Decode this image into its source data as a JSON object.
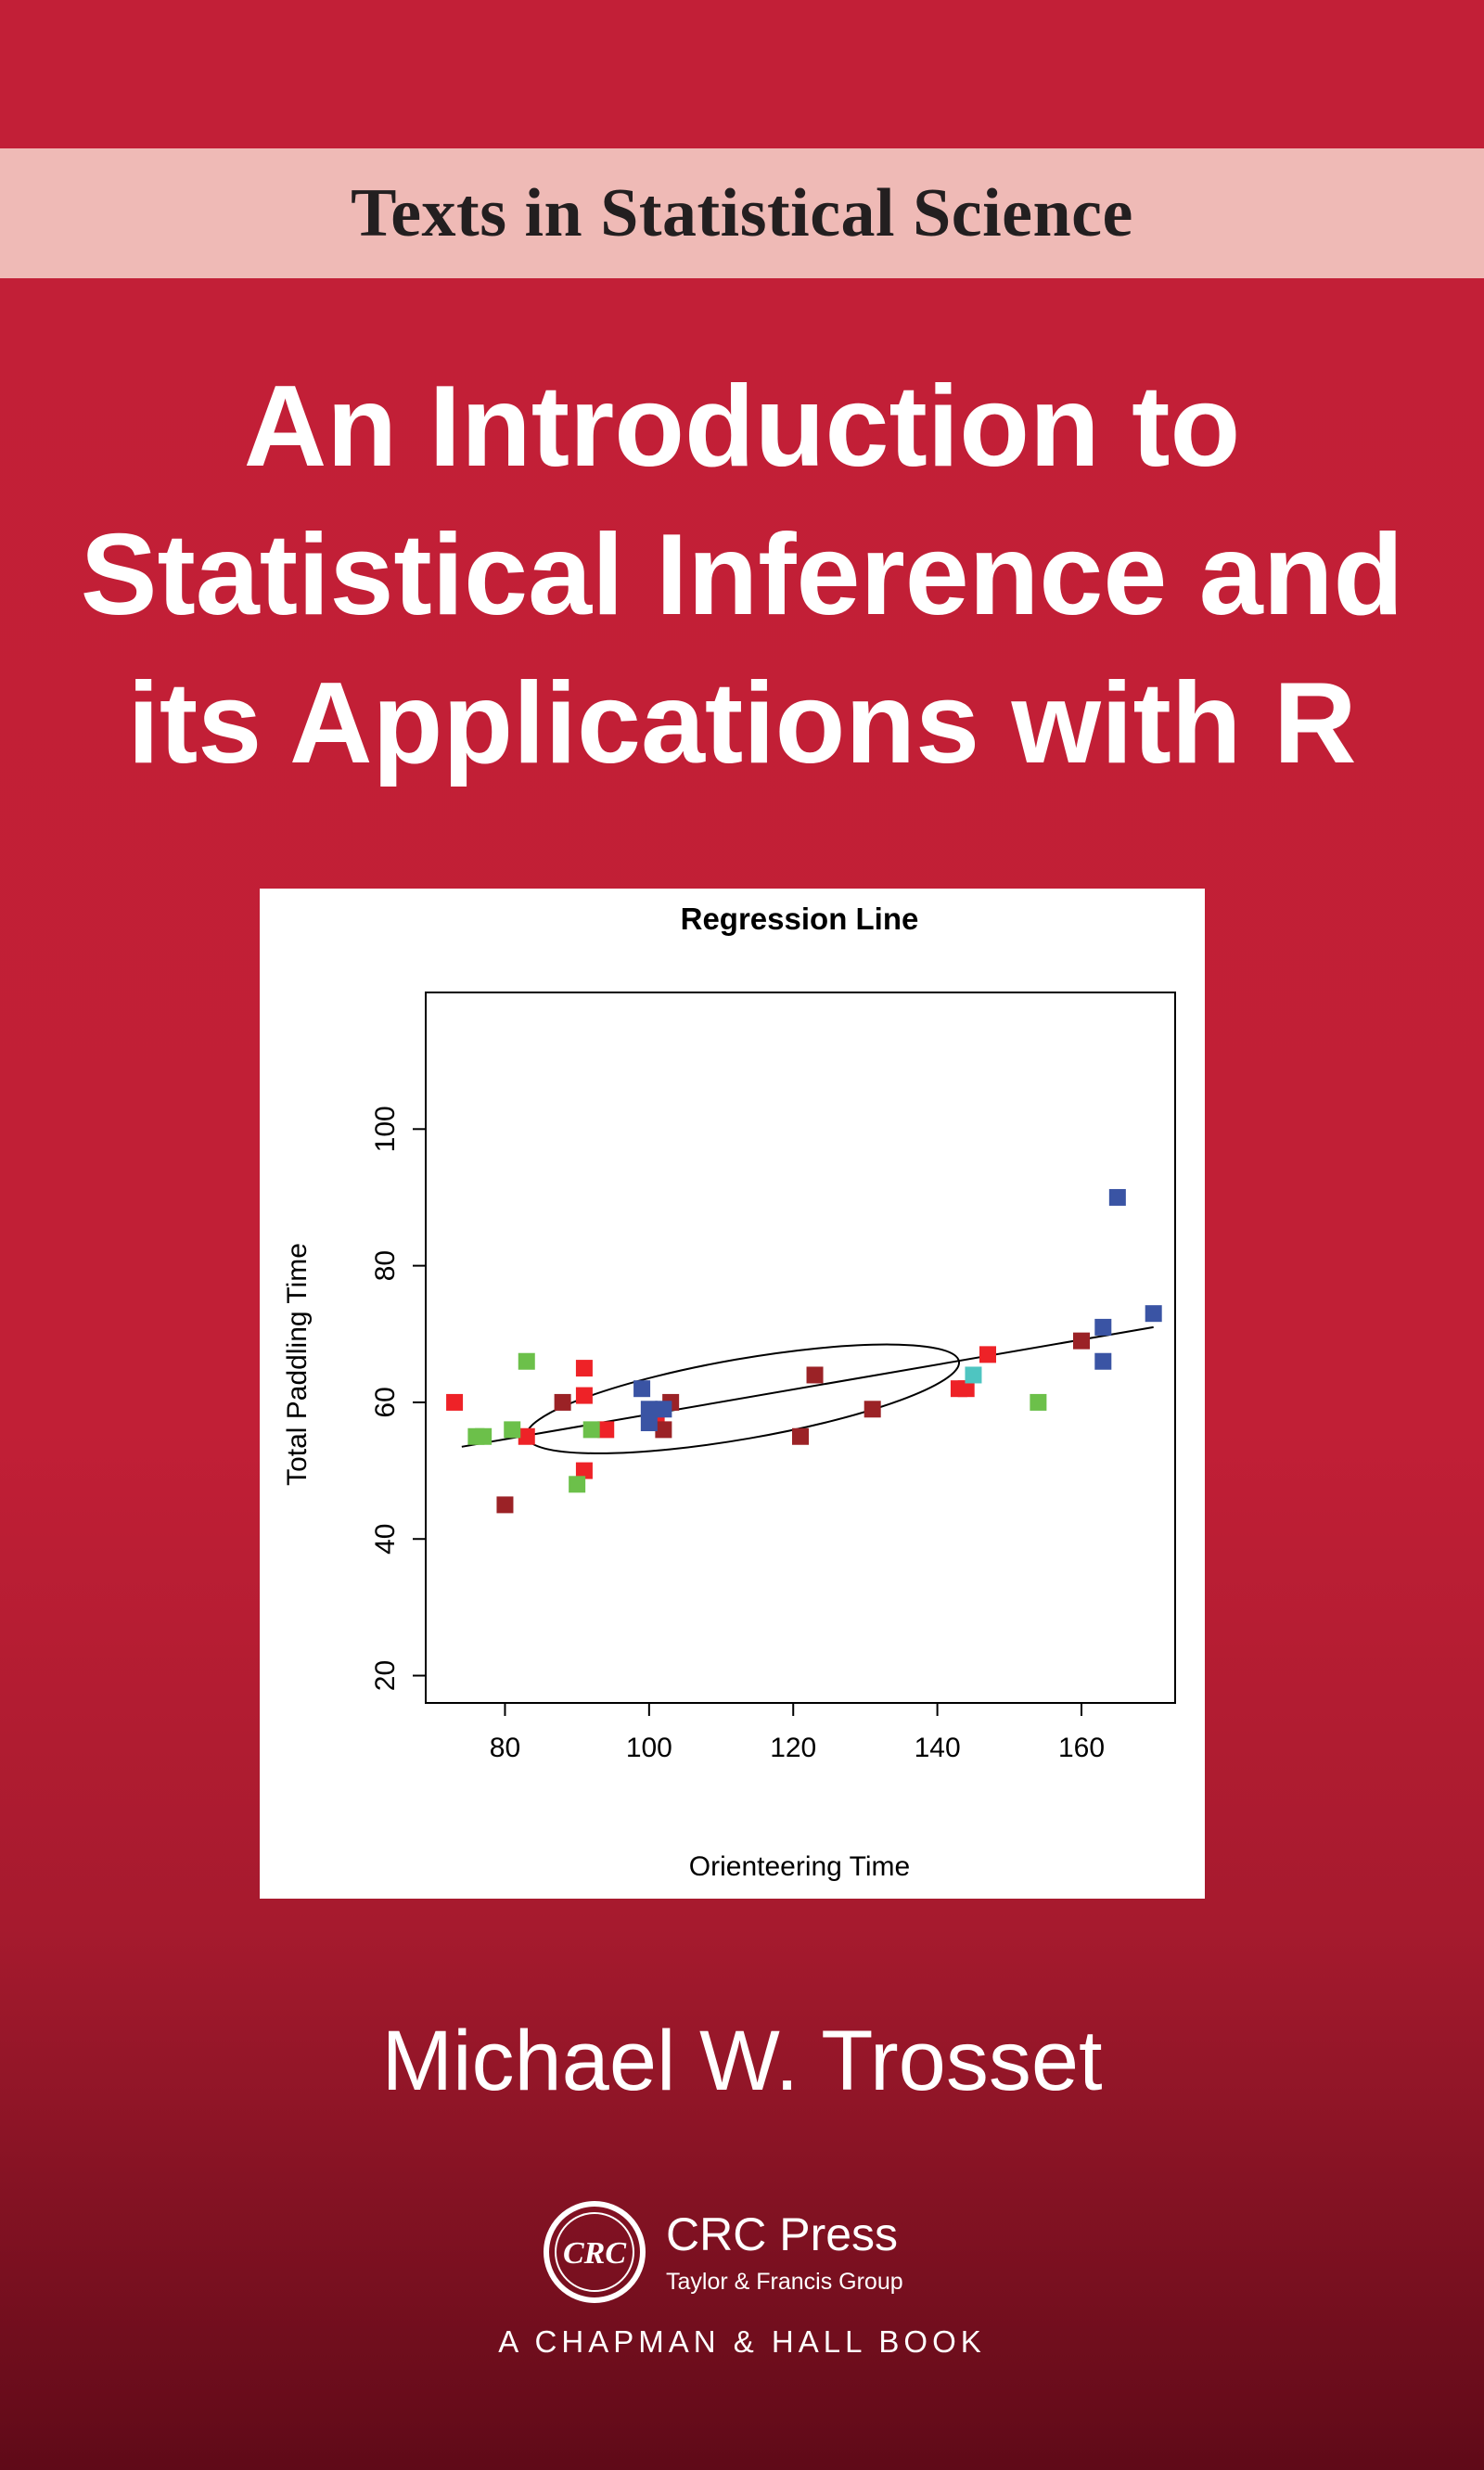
{
  "series": "Texts in Statistical Science",
  "title_lines": [
    "An Introduction to",
    "Statistical Inference and",
    "its Applications with R"
  ],
  "author": "Michael W. Trosset",
  "publisher": {
    "logo_text": "CRC",
    "name": "CRC Press",
    "group": "Taylor & Francis Group",
    "imprint": "A CHAPMAN & HALL BOOK"
  },
  "colors": {
    "cover_red": "#c21f37",
    "band_pink": "#efbab6",
    "series_red": "#ee2227",
    "series_darkred": "#9b2226",
    "series_blue": "#3a54a4",
    "series_green": "#6cc04a",
    "series_cyan": "#4ec5c1"
  },
  "chart_data": {
    "type": "scatter",
    "title": "Regression Line",
    "xlabel": "Orienteering Time",
    "ylabel": "Total Paddling Time",
    "xlim": [
      69,
      173
    ],
    "ylim": [
      16,
      120
    ],
    "xticks": [
      80,
      100,
      120,
      140,
      160
    ],
    "yticks": [
      20,
      40,
      60,
      80,
      100
    ],
    "grid": false,
    "regression_line": {
      "x": [
        74,
        170
      ],
      "y": [
        53.5,
        71
      ]
    },
    "ellipse": {
      "center": [
        113,
        60.5
      ],
      "through": [
        [
          83,
          55
        ],
        [
          143,
          66
        ]
      ],
      "semi_minor_y": 7.5
    },
    "series": [
      {
        "color": "red",
        "points": [
          [
            73,
            60
          ],
          [
            83,
            55
          ],
          [
            91,
            65
          ],
          [
            91,
            61
          ],
          [
            91,
            50
          ],
          [
            94,
            56
          ],
          [
            101,
            58
          ],
          [
            143,
            62
          ],
          [
            144,
            62
          ],
          [
            147,
            67
          ]
        ]
      },
      {
        "color": "darkred",
        "points": [
          [
            80,
            45
          ],
          [
            88,
            60
          ],
          [
            102,
            56
          ],
          [
            103,
            60
          ],
          [
            121,
            55
          ],
          [
            123,
            64
          ],
          [
            131,
            59
          ],
          [
            160,
            69
          ]
        ]
      },
      {
        "color": "blue",
        "points": [
          [
            99,
            62
          ],
          [
            100,
            59
          ],
          [
            100,
            57
          ],
          [
            102,
            59
          ],
          [
            163,
            71
          ],
          [
            163,
            66
          ],
          [
            165,
            90
          ],
          [
            170,
            73
          ]
        ]
      },
      {
        "color": "green",
        "points": [
          [
            76,
            55
          ],
          [
            77,
            55
          ],
          [
            81,
            56
          ],
          [
            83,
            66
          ],
          [
            90,
            48
          ],
          [
            92,
            56
          ],
          [
            154,
            60
          ]
        ]
      },
      {
        "color": "cyan",
        "points": [
          [
            145,
            64
          ]
        ]
      }
    ]
  }
}
